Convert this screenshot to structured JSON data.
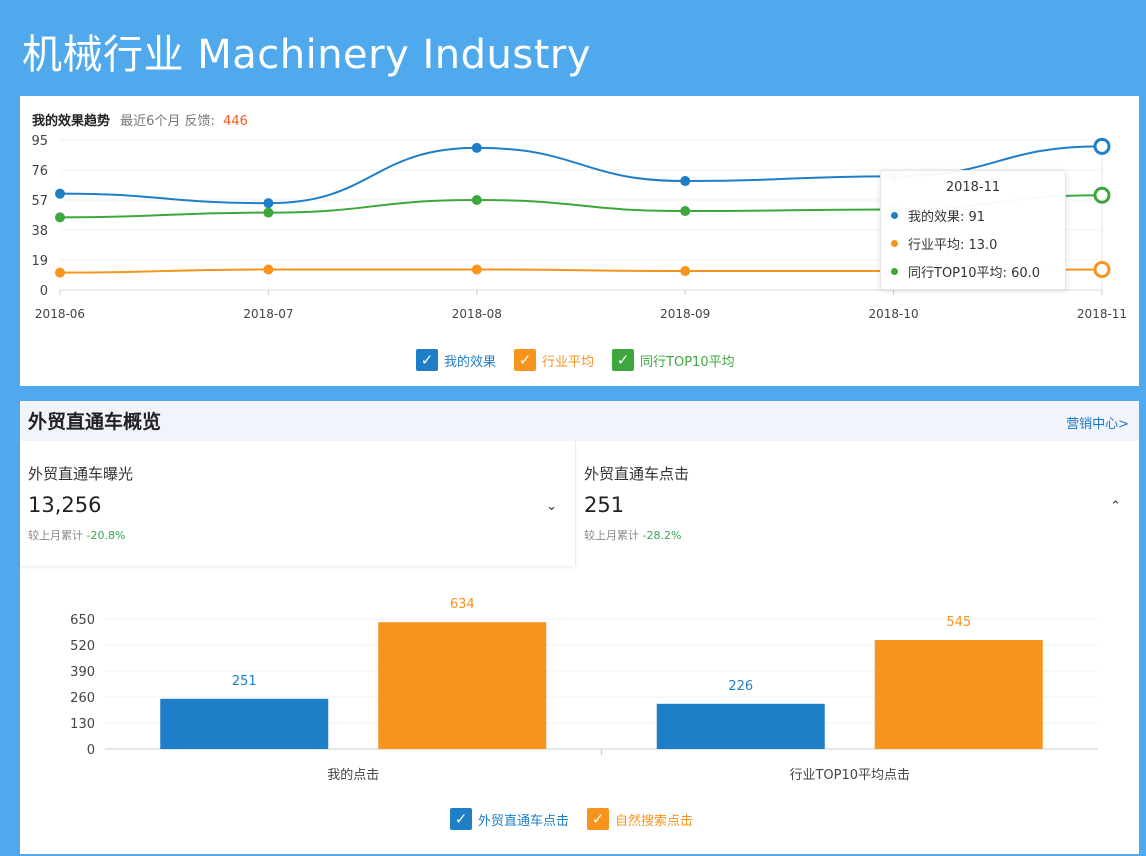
{
  "page": {
    "title": "机械行业 Machinery Industry"
  },
  "trend": {
    "title": "我的效果趋势",
    "subtitle": "最近6个月 反馈:",
    "feedback_count": "446",
    "colors": {
      "mine": "#1f7ec8",
      "industry": "#f7941d",
      "top10": "#3da73d"
    },
    "legend": [
      {
        "label": "我的效果",
        "color": "#1f7ec8"
      },
      {
        "label": "行业平均",
        "color": "#f7941d"
      },
      {
        "label": "同行TOP10平均",
        "color": "#3da73d"
      }
    ],
    "tooltip": {
      "title": "2018-11",
      "rows": [
        {
          "text": "我的效果: 91",
          "color": "#1f7ec8"
        },
        {
          "text": "行业平均: 13.0",
          "color": "#f7941d"
        },
        {
          "text": "同行TOP10平均: 60.0",
          "color": "#3da73d"
        }
      ]
    }
  },
  "overview": {
    "title": "外贸直通车概览",
    "link": "营销中心>",
    "impressions": {
      "label": "外贸直通车曝光",
      "value": "13,256",
      "compare_label": "较上月累计",
      "compare_pct": "-20.8%",
      "caret": "⌄"
    },
    "clicks": {
      "label": "外贸直通车点击",
      "value": "251",
      "compare_label": "较上月累计",
      "compare_pct": "-28.2%",
      "caret": "⌃"
    },
    "legend": [
      {
        "label": "外贸直通车点击",
        "color": "#1f7ec8"
      },
      {
        "label": "自然搜索点击",
        "color": "#f7941d"
      }
    ]
  },
  "chart_data": [
    {
      "type": "line",
      "x": [
        "2018-06",
        "2018-07",
        "2018-08",
        "2018-09",
        "2018-10",
        "2018-11"
      ],
      "y_ticks": [
        0,
        19,
        38,
        57,
        76,
        95
      ],
      "ylim": [
        0,
        95
      ],
      "series": [
        {
          "name": "我的效果",
          "values": [
            61,
            55,
            90,
            69,
            72,
            91
          ],
          "color": "#1f7ec8"
        },
        {
          "name": "行业平均",
          "values": [
            11,
            13,
            13,
            12,
            12,
            13
          ],
          "color": "#f7941d"
        },
        {
          "name": "同行TOP10平均",
          "values": [
            46,
            49,
            57,
            50,
            51,
            60
          ],
          "color": "#3da73d"
        }
      ],
      "legend_position": "bottom"
    },
    {
      "type": "bar",
      "categories": [
        "我的点击",
        "行业TOP10平均点击"
      ],
      "y_ticks": [
        0,
        130,
        260,
        390,
        520,
        650
      ],
      "ylim": [
        0,
        650
      ],
      "series": [
        {
          "name": "外贸直通车点击",
          "values": [
            251,
            226
          ],
          "color": "#1f7ec8"
        },
        {
          "name": "自然搜索点击",
          "values": [
            634,
            545
          ],
          "color": "#f7941d"
        }
      ],
      "data_labels": true,
      "legend_position": "bottom"
    }
  ]
}
